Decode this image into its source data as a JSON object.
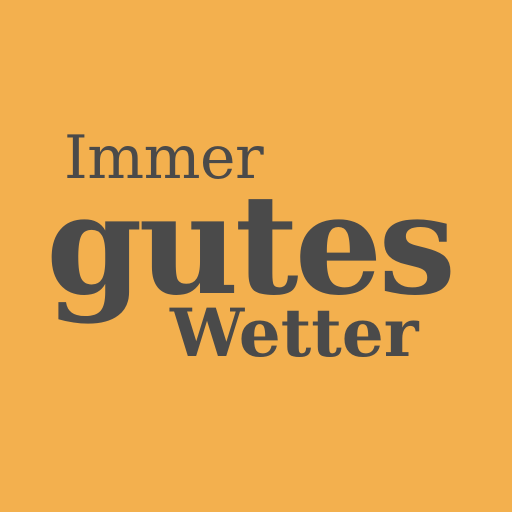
{
  "logo": {
    "line1": "Immer",
    "line2": "gutes",
    "line3": "Wetter"
  },
  "colors": {
    "background": "#F3B04E",
    "text": "#4A4A4A"
  }
}
